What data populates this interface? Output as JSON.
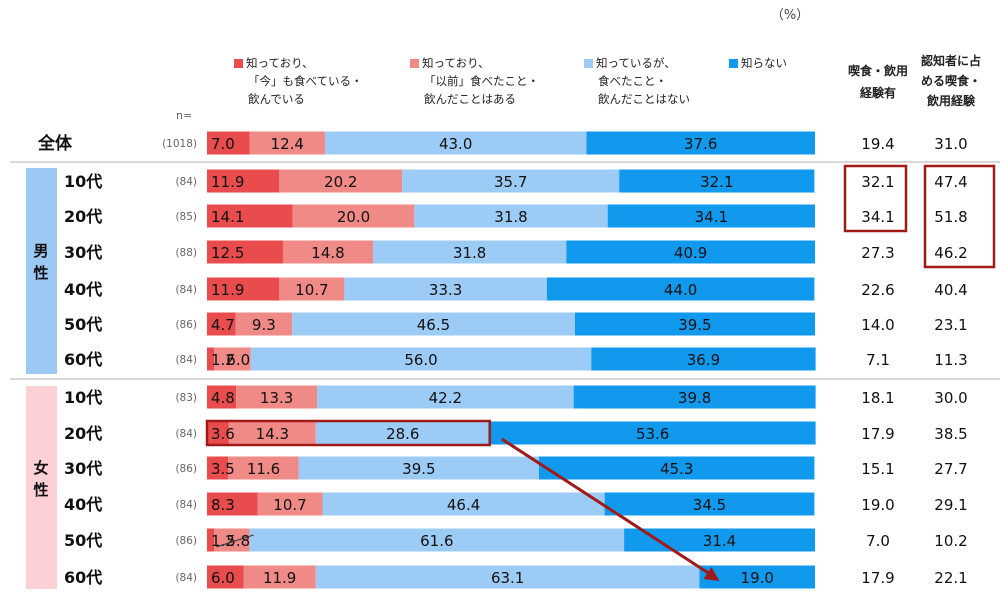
{
  "unit_label": "（%）",
  "n_prefix": "n=",
  "colors": {
    "now": "#e84c4c",
    "before": "#f08a86",
    "known": "#9ccbf6",
    "unknown": "#1199ee",
    "highlight": "#a01a1a",
    "male_band": "#9cc8f4",
    "female_band": "#fcd0d4",
    "rule": "#cccccc"
  },
  "legend": [
    {
      "lines": [
        "知っており、",
        "「今」も食べている・",
        "飲んでいる"
      ]
    },
    {
      "lines": [
        "知っており、",
        "「以前」食べたこと・",
        "飲んだことはある"
      ]
    },
    {
      "lines": [
        "知っているが、",
        "食べたこと・",
        "飲んだことはない"
      ]
    },
    {
      "lines": [
        "知らない"
      ]
    }
  ],
  "col_headers": {
    "experience": [
      "喫食・飲用",
      "経験有"
    ],
    "aware_ratio": [
      "認知者に占",
      "める喫食・",
      "飲用経験"
    ]
  },
  "group_labels": {
    "male": [
      "男",
      "性"
    ],
    "female": [
      "女",
      "性"
    ]
  },
  "chart_data": {
    "type": "bar",
    "orientation": "horizontal",
    "stacked": true,
    "normalized_percent": true,
    "xlim": [
      0,
      100
    ],
    "categories": [
      "全体",
      "男性 10代",
      "男性 20代",
      "男性 30代",
      "男性 40代",
      "男性 50代",
      "男性 60代",
      "女性 10代",
      "女性 20代",
      "女性 30代",
      "女性 40代",
      "女性 50代",
      "女性 60代"
    ],
    "row_labels": [
      "全体",
      "10代",
      "20代",
      "30代",
      "40代",
      "50代",
      "60代",
      "10代",
      "20代",
      "30代",
      "40代",
      "50代",
      "60代"
    ],
    "n": [
      "(1018)",
      "(84)",
      "(85)",
      "(88)",
      "(84)",
      "(86)",
      "(84)",
      "(83)",
      "(84)",
      "(86)",
      "(84)",
      "(86)",
      "(84)"
    ],
    "series": [
      {
        "values": [
          7.0,
          11.9,
          14.1,
          12.5,
          11.9,
          4.7,
          1.2,
          4.8,
          3.6,
          3.5,
          8.3,
          1.2,
          6.0
        ]
      },
      {
        "values": [
          12.4,
          20.2,
          20.0,
          14.8,
          10.7,
          9.3,
          6.0,
          13.3,
          14.3,
          11.6,
          10.7,
          5.8,
          11.9
        ]
      },
      {
        "values": [
          43.0,
          35.7,
          31.8,
          31.8,
          33.3,
          46.5,
          56.0,
          42.2,
          28.6,
          39.5,
          46.4,
          61.6,
          63.1
        ]
      },
      {
        "values": [
          37.6,
          32.1,
          34.1,
          40.9,
          44.0,
          39.5,
          36.9,
          39.8,
          53.6,
          45.3,
          34.5,
          31.4,
          19.0
        ]
      }
    ],
    "experience_values": [
      19.4,
      32.1,
      34.1,
      27.3,
      22.6,
      14.0,
      7.1,
      18.1,
      17.9,
      15.1,
      19.0,
      7.0,
      17.9
    ],
    "aware_ratio_values": [
      31.0,
      47.4,
      51.8,
      46.2,
      40.4,
      23.1,
      11.3,
      30.0,
      38.5,
      27.7,
      29.1,
      10.2,
      22.1
    ],
    "grid": false,
    "legend_position": "top"
  }
}
